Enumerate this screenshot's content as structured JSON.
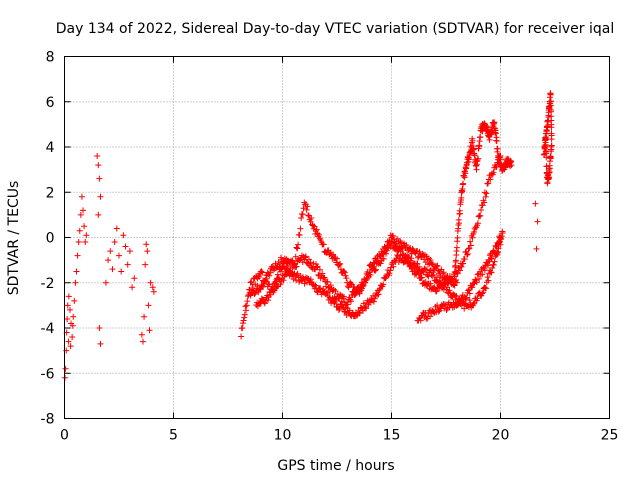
{
  "chart_data": {
    "type": "scatter",
    "title": "Day 134 of 2022, Sidereal Day-to-day VTEC variation (SDTVAR) for receiver iqal",
    "xlabel": "GPS time / hours",
    "ylabel": "SDTVAR / TECUs",
    "xlim": [
      0,
      25
    ],
    "ylim": [
      -8,
      8
    ],
    "x_ticks": [
      0,
      5,
      10,
      15,
      20,
      25
    ],
    "y_ticks": [
      -8,
      -6,
      -4,
      -2,
      0,
      2,
      4,
      6,
      8
    ],
    "grid": true,
    "marker": "+",
    "series": [
      {
        "name": "SDTVAR",
        "color": "#ff0000",
        "points": [
          [
            0.02,
            -6.2
          ],
          [
            0.05,
            -5.8
          ],
          [
            0.08,
            -5.0
          ],
          [
            0.1,
            -4.2
          ],
          [
            0.12,
            -3.6
          ],
          [
            0.15,
            -3.0
          ],
          [
            0.2,
            -2.6
          ],
          [
            0.25,
            -3.2
          ],
          [
            0.3,
            -3.8
          ],
          [
            0.35,
            -4.4
          ],
          [
            0.4,
            -3.5
          ],
          [
            0.45,
            -2.8
          ],
          [
            0.5,
            -2.0
          ],
          [
            0.55,
            -1.5
          ],
          [
            0.6,
            -0.8
          ],
          [
            0.65,
            -0.2
          ],
          [
            0.7,
            0.3
          ],
          [
            0.75,
            1.0
          ],
          [
            0.8,
            1.8
          ],
          [
            0.85,
            1.2
          ],
          [
            0.9,
            0.5
          ],
          [
            0.95,
            -0.2
          ],
          [
            1.0,
            0.1
          ],
          [
            0.18,
            -4.6
          ],
          [
            0.28,
            -4.8
          ],
          [
            0.38,
            -3.9
          ],
          [
            1.5,
            3.6
          ],
          [
            1.55,
            3.2
          ],
          [
            1.6,
            2.6
          ],
          [
            1.65,
            1.8
          ],
          [
            1.55,
            1.0
          ],
          [
            1.6,
            -4.0
          ],
          [
            1.65,
            -4.7
          ],
          [
            1.9,
            -2.0
          ],
          [
            2.0,
            -1.0
          ],
          [
            2.1,
            -0.6
          ],
          [
            2.2,
            -1.4
          ],
          [
            2.3,
            -0.2
          ],
          [
            2.4,
            0.4
          ],
          [
            2.5,
            -0.8
          ],
          [
            2.6,
            -1.5
          ],
          [
            2.7,
            0.1
          ],
          [
            2.8,
            -0.4
          ],
          [
            2.9,
            -1.2
          ],
          [
            3.0,
            -0.6
          ],
          [
            3.1,
            -2.2
          ],
          [
            3.2,
            -1.8
          ],
          [
            3.55,
            -4.3
          ],
          [
            3.6,
            -4.6
          ],
          [
            3.65,
            -3.5
          ],
          [
            3.7,
            -1.2
          ],
          [
            3.75,
            -0.3
          ],
          [
            3.8,
            -0.6
          ],
          [
            3.85,
            -3.0
          ],
          [
            3.9,
            -4.1
          ],
          [
            3.95,
            -2.0
          ],
          [
            4.05,
            -2.2
          ],
          [
            4.1,
            -2.4
          ],
          [
            21.6,
            1.5
          ],
          [
            21.7,
            0.7
          ],
          [
            21.65,
            -0.5
          ]
        ],
        "tracks": [
          {
            "x": [
              8.1,
              8.5,
              9.0,
              9.5,
              10.0,
              10.5,
              11.0,
              11.5,
              12.0,
              12.5,
              13.0,
              13.5,
              14.0,
              14.5,
              15.0,
              15.5,
              16.0,
              16.5,
              17.0,
              17.5,
              18.0
            ],
            "y": [
              -4.2,
              -2.2,
              -1.6,
              -2.4,
              -1.2,
              -1.5,
              1.6,
              0.3,
              -0.6,
              -1.0,
              -2.0,
              -2.5,
              -1.4,
              -0.8,
              0.0,
              -0.4,
              -0.6,
              -0.9,
              -1.3,
              -1.8,
              -2.0
            ]
          },
          {
            "x": [
              8.5,
              9.0,
              9.5,
              10.0,
              10.5,
              11.0,
              11.5,
              12.0,
              12.5,
              13.0,
              13.5,
              14.0,
              14.5,
              15.0,
              15.5,
              16.0,
              16.5,
              17.0,
              17.5,
              18.0,
              18.5,
              19.0,
              19.5,
              20.0
            ],
            "y": [
              -2.6,
              -2.2,
              -1.4,
              -1.0,
              -1.2,
              -0.9,
              -1.3,
              -2.0,
              -2.6,
              -2.9,
              -2.3,
              -1.6,
              -1.0,
              -0.3,
              -0.6,
              -1.4,
              -2.0,
              -2.3,
              -2.0,
              -1.6,
              -0.6,
              0.8,
              2.6,
              3.6
            ]
          },
          {
            "x": [
              8.8,
              9.3,
              9.8,
              10.3,
              10.8,
              11.3,
              11.8,
              12.3,
              12.8,
              13.3,
              13.8,
              14.3,
              14.8,
              15.3,
              15.8,
              16.3,
              16.8,
              17.3,
              17.8,
              18.3,
              18.8,
              19.3,
              19.8,
              20.1
            ],
            "y": [
              -3.0,
              -2.7,
              -2.0,
              -1.6,
              -1.8,
              -2.0,
              -2.4,
              -2.8,
              -3.2,
              -3.4,
              -3.0,
              -2.6,
              -1.6,
              -0.9,
              -1.0,
              -1.4,
              -1.6,
              -2.0,
              -2.6,
              -3.0,
              -2.9,
              -2.2,
              -0.8,
              0.2
            ]
          },
          {
            "x": [
              16.2,
              16.7,
              17.2,
              17.7,
              18.2,
              18.7,
              19.2,
              19.6,
              20.0
            ],
            "y": [
              -3.6,
              -3.4,
              -3.1,
              -3.0,
              -2.8,
              -2.2,
              -1.4,
              -0.8,
              0.0
            ]
          },
          {
            "x": [
              17.9,
              18.1,
              18.3,
              18.5,
              18.7,
              18.9,
              19.1,
              19.3,
              19.5,
              19.7,
              19.9,
              20.1,
              20.3,
              20.5
            ],
            "y": [
              -1.5,
              0.8,
              2.6,
              3.4,
              4.2,
              3.0,
              4.8,
              5.0,
              4.4,
              5.2,
              3.6,
              3.0,
              3.4,
              3.2
            ]
          },
          {
            "x": [
              22.0,
              22.1,
              22.2,
              22.3,
              22.35,
              22.25,
              22.15,
              22.05
            ],
            "y": [
              3.8,
              4.6,
              5.4,
              6.3,
              4.2,
              3.0,
              2.4,
              4.4
            ]
          }
        ]
      }
    ]
  }
}
